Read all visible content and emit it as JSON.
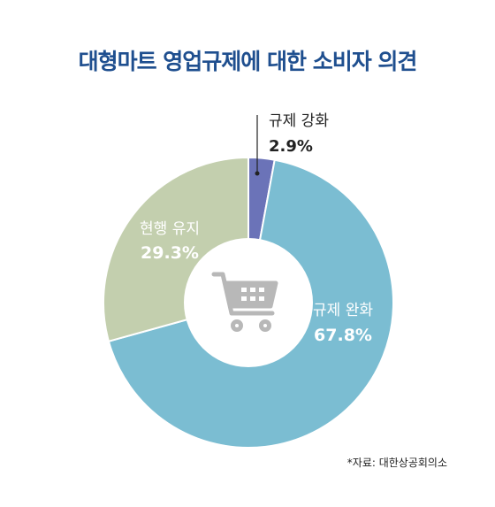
{
  "title": "대형마트 영업규제에 대한 소비자 의견",
  "source": "*자료: 대한상공회의소",
  "chart_data": {
    "type": "donut",
    "title": "대형마트 영업규제에 대한 소비자 의견",
    "series": [
      {
        "label": "규제 강화",
        "value": 2.9,
        "display": "2.9%",
        "color": "#6b73b8"
      },
      {
        "label": "규제 완화",
        "value": 67.8,
        "display": "67.8%",
        "color": "#7bbdd2"
      },
      {
        "label": "현행 유지",
        "value": 29.3,
        "display": "29.3%",
        "color": "#c3cfae"
      }
    ],
    "center_icon": "shopping-cart-icon",
    "center_icon_color": "#b8b8b8"
  }
}
